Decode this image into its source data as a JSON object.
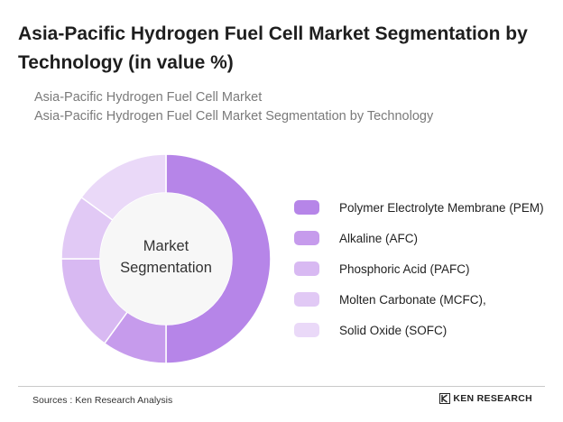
{
  "title": "Asia-Pacific Hydrogen Fuel Cell Market Segmentation by Technology (in value %)",
  "subtitles": [
    "Asia-Pacific Hydrogen Fuel Cell Market",
    "Asia-Pacific Hydrogen Fuel Cell Market Segmentation by Technology"
  ],
  "chart_data": {
    "type": "pie",
    "center_label_lines": [
      "Market",
      "Segmentation"
    ],
    "categories": [
      "Polymer Electrolyte Membrane (PEM)",
      "Alkaline (AFC)",
      "Phosphoric Acid (PAFC)",
      "Molten Carbonate (MCFC),",
      "Solid Oxide (SOFC)"
    ],
    "values": [
      50,
      10,
      15,
      10,
      15
    ],
    "colors": [
      "#b685e8",
      "#c69bec",
      "#d8b9f2",
      "#e1c9f5",
      "#ead9f8"
    ],
    "legend_position": "right"
  },
  "footer": {
    "source": "Sources : Ken Research Analysis",
    "brand": "KEN RESEARCH"
  },
  "icons": {
    "logo": "ken-research-logo-icon"
  }
}
